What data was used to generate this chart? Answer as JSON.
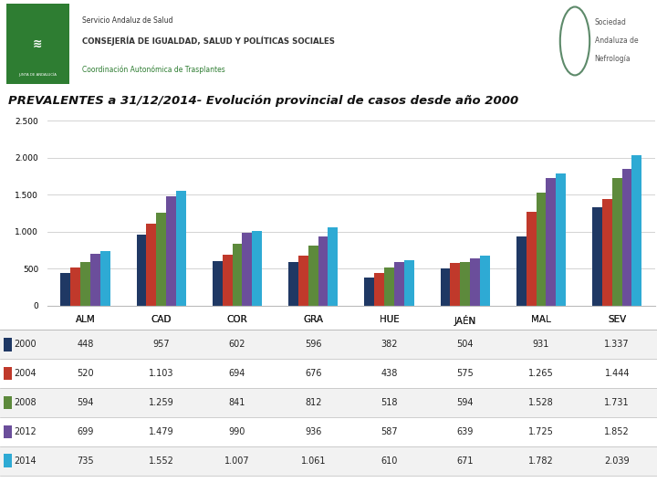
{
  "title": "PREVALENTES a 31/12/2014- Evolución provincial de casos desde año 2000",
  "categories": [
    "ALM",
    "CAD",
    "COR",
    "GRA",
    "HUE",
    "JAÉN",
    "MAL",
    "SEV"
  ],
  "years": [
    "2000",
    "2004",
    "2008",
    "2012",
    "2014"
  ],
  "colors": [
    "#1F3864",
    "#C0392B",
    "#5D8A3C",
    "#6B4E9B",
    "#2EAAD4"
  ],
  "data": {
    "2000": [
      448,
      957,
      602,
      596,
      382,
      504,
      931,
      1337
    ],
    "2004": [
      520,
      1103,
      694,
      676,
      438,
      575,
      1265,
      1444
    ],
    "2008": [
      594,
      1259,
      841,
      812,
      518,
      594,
      1528,
      1731
    ],
    "2012": [
      699,
      1479,
      990,
      936,
      587,
      639,
      1725,
      1852
    ],
    "2014": [
      735,
      1552,
      1007,
      1061,
      610,
      671,
      1782,
      2039
    ]
  },
  "table_data": {
    "2000": [
      "448",
      "957",
      "602",
      "596",
      "382",
      "504",
      "931",
      "1.337"
    ],
    "2004": [
      "520",
      "1.103",
      "694",
      "676",
      "438",
      "575",
      "1.265",
      "1.444"
    ],
    "2008": [
      "594",
      "1.259",
      "841",
      "812",
      "518",
      "594",
      "1.528",
      "1.731"
    ],
    "2012": [
      "699",
      "1.479",
      "990",
      "936",
      "587",
      "639",
      "1.725",
      "1.852"
    ],
    "2014": [
      "735",
      "1.552",
      "1.007",
      "1.061",
      "610",
      "671",
      "1.782",
      "2.039"
    ]
  },
  "ylim": [
    0,
    2500
  ],
  "yticks": [
    0,
    500,
    1000,
    1500,
    2000,
    2500
  ],
  "background_color": "#FFFFFF",
  "grid_color": "#CCCCCC",
  "header_line_color": "#BBBBBB",
  "table_line_color": "#BBBBBB"
}
